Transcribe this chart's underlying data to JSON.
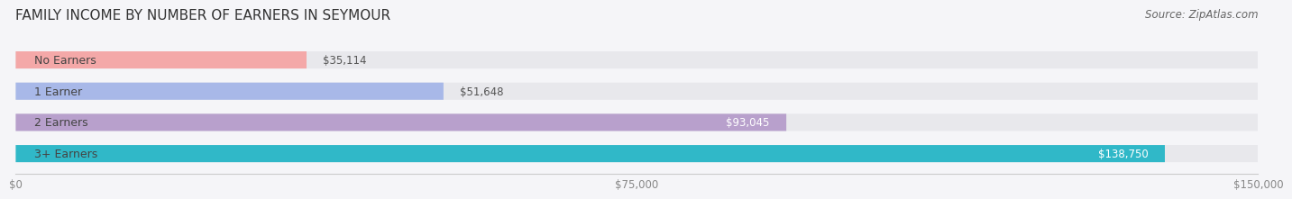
{
  "title": "FAMILY INCOME BY NUMBER OF EARNERS IN SEYMOUR",
  "source": "Source: ZipAtlas.com",
  "categories": [
    "No Earners",
    "1 Earner",
    "2 Earners",
    "3+ Earners"
  ],
  "values": [
    35114,
    51648,
    93045,
    138750
  ],
  "bar_colors": [
    "#f4a8a8",
    "#a8b8e8",
    "#b8a0cc",
    "#30b8c8"
  ],
  "track_color": "#e8e8ec",
  "xlim": [
    0,
    150000
  ],
  "xticks": [
    0,
    75000,
    150000
  ],
  "xtick_labels": [
    "$0",
    "$75,000",
    "$150,000"
  ],
  "value_labels": [
    "$35,114",
    "$51,648",
    "$93,045",
    "$138,750"
  ],
  "bg_color": "#f5f5f8",
  "bar_height": 0.55,
  "label_fontsize": 9,
  "title_fontsize": 11,
  "source_fontsize": 8.5,
  "value_fontsize": 8.5,
  "tick_fontsize": 8.5
}
